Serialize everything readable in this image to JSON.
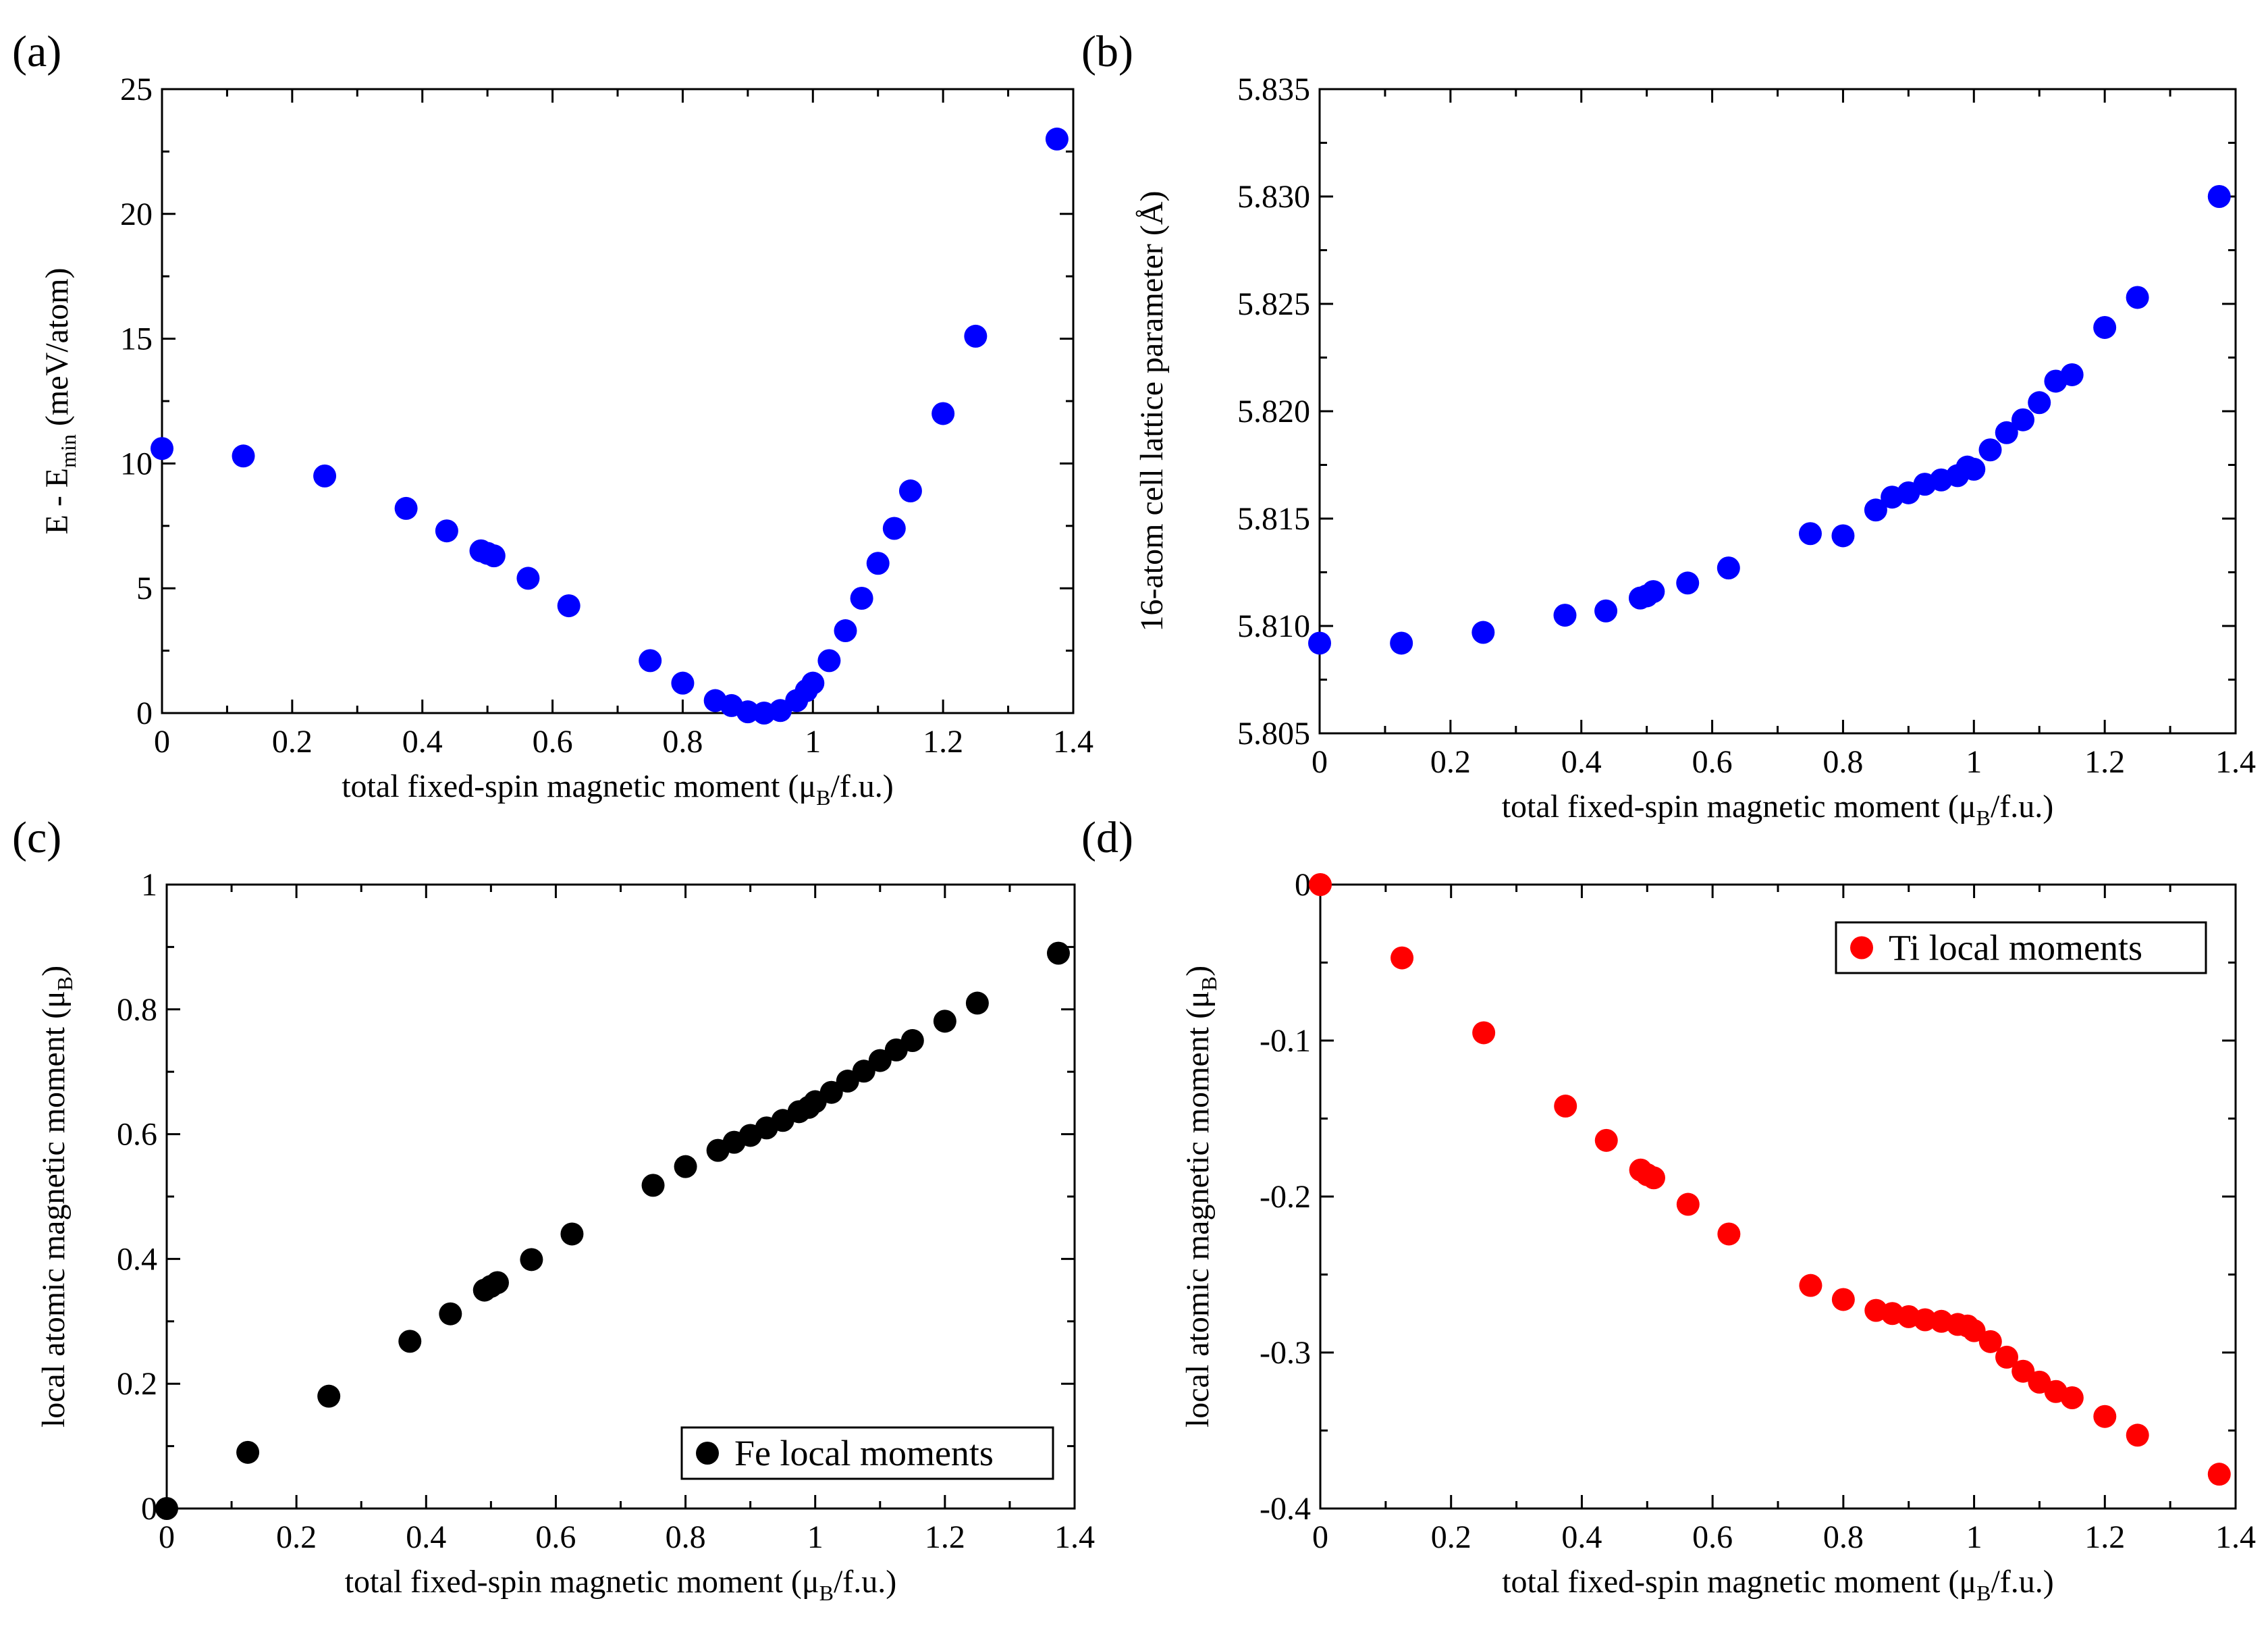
{
  "chart_data": [
    {
      "id": "a",
      "panel_label": "(a)",
      "type": "scatter",
      "xlabel": "total fixed-spin magnetic moment (μB/f.u.)",
      "ylabel": "E - Emin (meV/atom)",
      "xlim": [
        0,
        1.4
      ],
      "ylim": [
        0,
        25
      ],
      "xticks": [
        0,
        0.2,
        0.4,
        0.6,
        0.8,
        1,
        1.2,
        1.4
      ],
      "xtick_labels": [
        "0",
        "0.2",
        "0.4",
        "0.6",
        "0.8",
        "1",
        "1.2",
        "1.4"
      ],
      "yticks": [
        0,
        5,
        10,
        15,
        20,
        25
      ],
      "ytick_labels": [
        "0",
        "5",
        "10",
        "15",
        "20",
        "25"
      ],
      "grid": false,
      "legend": null,
      "series": [
        {
          "color": "#0000ff",
          "x": [
            0,
            0.125,
            0.25,
            0.375,
            0.4375,
            0.49,
            0.5,
            0.51,
            0.5625,
            0.625,
            0.75,
            0.8,
            0.85,
            0.875,
            0.9,
            0.925,
            0.95,
            0.975,
            0.99,
            1.0,
            1.025,
            1.05,
            1.075,
            1.1,
            1.125,
            1.15,
            1.2,
            1.25,
            1.375
          ],
          "y": [
            10.6,
            10.3,
            9.5,
            8.2,
            7.3,
            6.5,
            6.4,
            6.3,
            5.4,
            4.3,
            2.1,
            1.2,
            0.5,
            0.3,
            0.05,
            0.0,
            0.1,
            0.5,
            0.9,
            1.2,
            2.1,
            3.3,
            4.6,
            6.0,
            7.4,
            8.9,
            12.0,
            15.1,
            23.0
          ]
        }
      ]
    },
    {
      "id": "b",
      "panel_label": "(b)",
      "type": "scatter",
      "xlabel": "total fixed-spin magnetic moment (μB/f.u.)",
      "ylabel": "16-atom cell lattice parameter (Å)",
      "xlim": [
        0,
        1.4
      ],
      "ylim": [
        5.805,
        5.835
      ],
      "xticks": [
        0,
        0.2,
        0.4,
        0.6,
        0.8,
        1,
        1.2,
        1.4
      ],
      "xtick_labels": [
        "0",
        "0.2",
        "0.4",
        "0.6",
        "0.8",
        "1",
        "1.2",
        "1.4"
      ],
      "yticks": [
        5.805,
        5.81,
        5.815,
        5.82,
        5.825,
        5.83,
        5.835
      ],
      "ytick_labels": [
        "5.805",
        "5.810",
        "5.815",
        "5.820",
        "5.825",
        "5.830",
        "5.835"
      ],
      "grid": false,
      "legend": null,
      "series": [
        {
          "color": "#0000ff",
          "x": [
            0,
            0.125,
            0.25,
            0.375,
            0.4375,
            0.49,
            0.5,
            0.51,
            0.5625,
            0.625,
            0.75,
            0.8,
            0.85,
            0.875,
            0.9,
            0.925,
            0.95,
            0.975,
            0.99,
            1.0,
            1.025,
            1.05,
            1.075,
            1.1,
            1.125,
            1.15,
            1.2,
            1.25,
            1.375
          ],
          "y": [
            5.8092,
            5.8092,
            5.8097,
            5.8105,
            5.8107,
            5.8113,
            5.8114,
            5.8116,
            5.812,
            5.8127,
            5.8143,
            5.8142,
            5.8154,
            5.816,
            5.8162,
            5.8166,
            5.8168,
            5.817,
            5.8174,
            5.8173,
            5.8182,
            5.819,
            5.8196,
            5.8204,
            5.8214,
            5.8217,
            5.8239,
            5.8253,
            5.83
          ]
        }
      ]
    },
    {
      "id": "c",
      "panel_label": "(c)",
      "type": "scatter",
      "xlabel": "total fixed-spin magnetic moment (μB/f.u.)",
      "ylabel": "local atomic magnetic moment (μB)",
      "xlim": [
        0,
        1.4
      ],
      "ylim": [
        0,
        1
      ],
      "xticks": [
        0,
        0.2,
        0.4,
        0.6,
        0.8,
        1,
        1.2,
        1.4
      ],
      "xtick_labels": [
        "0",
        "0.2",
        "0.4",
        "0.6",
        "0.8",
        "1",
        "1.2",
        "1.4"
      ],
      "yticks": [
        0,
        0.2,
        0.4,
        0.6,
        0.8,
        1
      ],
      "ytick_labels": [
        "0",
        "0.2",
        "0.4",
        "0.6",
        "0.8",
        "1"
      ],
      "grid": false,
      "legend": "bottom-right",
      "series": [
        {
          "name": "Fe local moments",
          "color": "#000000",
          "x": [
            0,
            0.125,
            0.25,
            0.375,
            0.4375,
            0.49,
            0.5,
            0.51,
            0.5625,
            0.625,
            0.75,
            0.8,
            0.85,
            0.875,
            0.9,
            0.925,
            0.95,
            0.975,
            0.99,
            1.0,
            1.025,
            1.05,
            1.075,
            1.1,
            1.125,
            1.15,
            1.2,
            1.25,
            1.375
          ],
          "y": [
            0,
            0.09,
            0.18,
            0.268,
            0.312,
            0.35,
            0.356,
            0.362,
            0.399,
            0.44,
            0.518,
            0.548,
            0.574,
            0.587,
            0.598,
            0.61,
            0.622,
            0.636,
            0.643,
            0.652,
            0.667,
            0.685,
            0.701,
            0.718,
            0.735,
            0.75,
            0.781,
            0.81,
            0.89
          ]
        }
      ]
    },
    {
      "id": "d",
      "panel_label": "(d)",
      "type": "scatter",
      "xlabel": "total fixed-spin magnetic moment (μB/f.u.)",
      "ylabel": "local atomic magnetic moment (μB)",
      "xlim": [
        0,
        1.4
      ],
      "ylim": [
        -0.4,
        0
      ],
      "xticks": [
        0,
        0.2,
        0.4,
        0.6,
        0.8,
        1,
        1.2,
        1.4
      ],
      "xtick_labels": [
        "0",
        "0.2",
        "0.4",
        "0.6",
        "0.8",
        "1",
        "1.2",
        "1.4"
      ],
      "yticks": [
        -0.4,
        -0.3,
        -0.2,
        -0.1,
        0
      ],
      "ytick_labels": [
        "-0.4",
        "-0.3",
        "-0.2",
        "-0.1",
        "0"
      ],
      "grid": false,
      "legend": "top-right",
      "series": [
        {
          "name": "Ti local moments",
          "color": "#ff0000",
          "x": [
            0,
            0.125,
            0.25,
            0.375,
            0.4375,
            0.49,
            0.5,
            0.51,
            0.5625,
            0.625,
            0.75,
            0.8,
            0.85,
            0.875,
            0.9,
            0.925,
            0.95,
            0.975,
            0.99,
            1.0,
            1.025,
            1.05,
            1.075,
            1.1,
            1.125,
            1.15,
            1.2,
            1.25,
            1.375
          ],
          "y": [
            0,
            -0.047,
            -0.095,
            -0.142,
            -0.164,
            -0.183,
            -0.186,
            -0.188,
            -0.205,
            -0.224,
            -0.257,
            -0.266,
            -0.273,
            -0.275,
            -0.277,
            -0.279,
            -0.28,
            -0.282,
            -0.283,
            -0.286,
            -0.293,
            -0.303,
            -0.312,
            -0.319,
            -0.325,
            -0.329,
            -0.341,
            -0.353,
            -0.378
          ]
        }
      ]
    }
  ]
}
